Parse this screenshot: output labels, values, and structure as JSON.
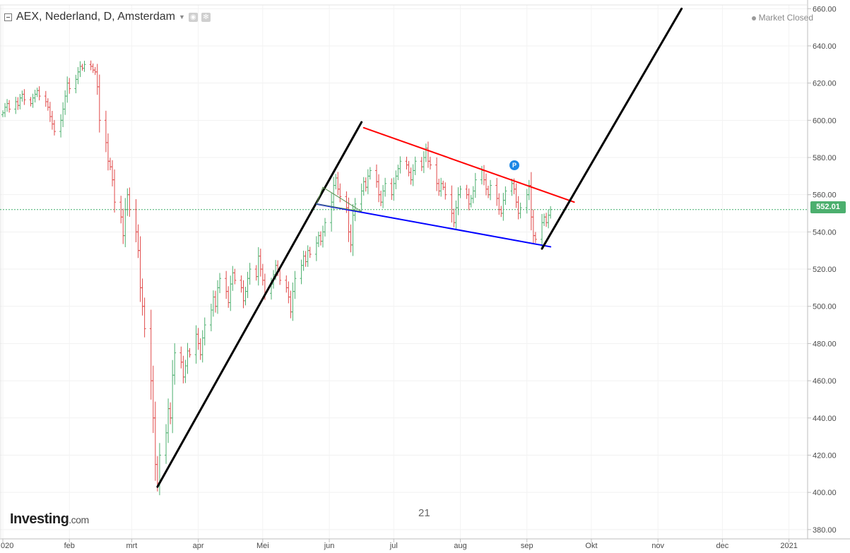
{
  "legend": {
    "title": "AEX, Nederland, D, Amsterdam"
  },
  "status": {
    "label": "Market Closed"
  },
  "logo": {
    "brand": "Investing",
    "suffix": ".com"
  },
  "watermark": "21",
  "price_marker": "P",
  "colors": {
    "up": "#4caf6e",
    "down": "#e04848",
    "last_price_line": "#3fae6a",
    "resistance": "#ff0000",
    "support": "#0000ff",
    "trend": "#000000",
    "triangle": "#5a8f4e"
  },
  "chart_data": {
    "type": "ohlc-bar",
    "y_axis": {
      "min": 375,
      "max": 662,
      "side": "right",
      "ticks": [
        380,
        400,
        420,
        440,
        460,
        480,
        500,
        520,
        540,
        560,
        580,
        600,
        620,
        640,
        660
      ],
      "tick_labels": [
        "380.00",
        "400.00",
        "420.00",
        "440.00",
        "460.00",
        "480.00",
        "500.00",
        "520.00",
        "540.00",
        "560.00",
        "580.00",
        "600.00",
        "620.00",
        "640.00",
        "660.00"
      ]
    },
    "x_axis": {
      "labels": [
        {
          "text": "020",
          "d": 0
        },
        {
          "text": "feb",
          "d": 31
        },
        {
          "text": "mrt",
          "d": 60
        },
        {
          "text": "apr",
          "d": 91
        },
        {
          "text": "Mei",
          "d": 121
        },
        {
          "text": "jun",
          "d": 152
        },
        {
          "text": "jul",
          "d": 182
        },
        {
          "text": "aug",
          "d": 213
        },
        {
          "text": "sep",
          "d": 244
        },
        {
          "text": "Okt",
          "d": 274
        },
        {
          "text": "nov",
          "d": 305
        },
        {
          "text": "dec",
          "d": 335
        },
        {
          "text": "2021",
          "d": 366
        }
      ]
    },
    "last_price": {
      "value": 552.01,
      "label": "552.01"
    },
    "closes": [
      {
        "d": 0,
        "c": 604
      },
      {
        "d": 1,
        "c": 607
      },
      {
        "d": 2,
        "c": 609
      },
      {
        "d": 3,
        "c": 606
      },
      {
        "d": 6,
        "c": 610
      },
      {
        "d": 7,
        "c": 608
      },
      {
        "d": 8,
        "c": 612
      },
      {
        "d": 9,
        "c": 614
      },
      {
        "d": 10,
        "c": 611
      },
      {
        "d": 13,
        "c": 609
      },
      {
        "d": 14,
        "c": 612
      },
      {
        "d": 15,
        "c": 614
      },
      {
        "d": 16,
        "c": 616
      },
      {
        "d": 17,
        "c": 613
      },
      {
        "d": 20,
        "c": 610
      },
      {
        "d": 21,
        "c": 607
      },
      {
        "d": 22,
        "c": 602
      },
      {
        "d": 23,
        "c": 598
      },
      {
        "d": 24,
        "c": 594
      },
      {
        "d": 27,
        "c": 600
      },
      {
        "d": 28,
        "c": 606
      },
      {
        "d": 29,
        "c": 613
      },
      {
        "d": 30,
        "c": 620
      },
      {
        "d": 31,
        "c": 617
      },
      {
        "d": 34,
        "c": 622
      },
      {
        "d": 35,
        "c": 626
      },
      {
        "d": 36,
        "c": 629
      },
      {
        "d": 37,
        "c": 628
      },
      {
        "d": 38,
        "c": 630
      },
      {
        "d": 41,
        "c": 629
      },
      {
        "d": 42,
        "c": 627
      },
      {
        "d": 43,
        "c": 626
      },
      {
        "d": 44,
        "c": 618
      },
      {
        "d": 45,
        "c": 600
      },
      {
        "d": 48,
        "c": 588
      },
      {
        "d": 49,
        "c": 578
      },
      {
        "d": 50,
        "c": 575
      },
      {
        "d": 51,
        "c": 568
      },
      {
        "d": 52,
        "c": 556
      },
      {
        "d": 55,
        "c": 548
      },
      {
        "d": 56,
        "c": 538
      },
      {
        "d": 57,
        "c": 552
      },
      {
        "d": 58,
        "c": 560
      },
      {
        "d": 59,
        "c": 552
      },
      {
        "d": 62,
        "c": 540
      },
      {
        "d": 63,
        "c": 530
      },
      {
        "d": 64,
        "c": 510
      },
      {
        "d": 65,
        "c": 500
      },
      {
        "d": 66,
        "c": 488
      },
      {
        "d": 69,
        "c": 460
      },
      {
        "d": 70,
        "c": 440
      },
      {
        "d": 71,
        "c": 415
      },
      {
        "d": 72,
        "c": 405
      },
      {
        "d": 73,
        "c": 420
      },
      {
        "d": 76,
        "c": 432
      },
      {
        "d": 77,
        "c": 445
      },
      {
        "d": 78,
        "c": 440
      },
      {
        "d": 79,
        "c": 463
      },
      {
        "d": 80,
        "c": 475
      },
      {
        "d": 83,
        "c": 470
      },
      {
        "d": 84,
        "c": 462
      },
      {
        "d": 85,
        "c": 468
      },
      {
        "d": 86,
        "c": 476
      },
      {
        "d": 87,
        "c": 474
      },
      {
        "d": 90,
        "c": 485
      },
      {
        "d": 91,
        "c": 480
      },
      {
        "d": 92,
        "c": 474
      },
      {
        "d": 93,
        "c": 483
      },
      {
        "d": 94,
        "c": 490
      },
      {
        "d": 97,
        "c": 498
      },
      {
        "d": 98,
        "c": 505
      },
      {
        "d": 99,
        "c": 500
      },
      {
        "d": 100,
        "c": 510
      },
      {
        "d": 101,
        "c": 515
      },
      {
        "d": 104,
        "c": 508
      },
      {
        "d": 105,
        "c": 502
      },
      {
        "d": 106,
        "c": 512
      },
      {
        "d": 107,
        "c": 518
      },
      {
        "d": 108,
        "c": 514
      },
      {
        "d": 111,
        "c": 510
      },
      {
        "d": 112,
        "c": 503
      },
      {
        "d": 113,
        "c": 508
      },
      {
        "d": 114,
        "c": 515
      },
      {
        "d": 115,
        "c": 520
      },
      {
        "d": 118,
        "c": 516
      },
      {
        "d": 119,
        "c": 527
      },
      {
        "d": 120,
        "c": 520
      },
      {
        "d": 121,
        "c": 514
      },
      {
        "d": 122,
        "c": 507
      },
      {
        "d": 125,
        "c": 512
      },
      {
        "d": 126,
        "c": 517
      },
      {
        "d": 127,
        "c": 522
      },
      {
        "d": 128,
        "c": 519
      },
      {
        "d": 129,
        "c": 514
      },
      {
        "d": 132,
        "c": 510
      },
      {
        "d": 133,
        "c": 505
      },
      {
        "d": 134,
        "c": 497
      },
      {
        "d": 135,
        "c": 508
      },
      {
        "d": 136,
        "c": 515
      },
      {
        "d": 139,
        "c": 522
      },
      {
        "d": 140,
        "c": 527
      },
      {
        "d": 141,
        "c": 524
      },
      {
        "d": 142,
        "c": 530
      },
      {
        "d": 143,
        "c": 528
      },
      {
        "d": 146,
        "c": 534
      },
      {
        "d": 147,
        "c": 538
      },
      {
        "d": 148,
        "c": 535
      },
      {
        "d": 149,
        "c": 540
      },
      {
        "d": 150,
        "c": 545
      },
      {
        "d": 153,
        "c": 556
      },
      {
        "d": 154,
        "c": 565
      },
      {
        "d": 155,
        "c": 569
      },
      {
        "d": 156,
        "c": 563
      },
      {
        "d": 157,
        "c": 559
      },
      {
        "d": 160,
        "c": 553
      },
      {
        "d": 161,
        "c": 540
      },
      {
        "d": 162,
        "c": 533
      },
      {
        "d": 163,
        "c": 549
      },
      {
        "d": 164,
        "c": 555
      },
      {
        "d": 167,
        "c": 562
      },
      {
        "d": 168,
        "c": 567
      },
      {
        "d": 169,
        "c": 564
      },
      {
        "d": 170,
        "c": 570
      },
      {
        "d": 171,
        "c": 573
      },
      {
        "d": 174,
        "c": 567
      },
      {
        "d": 175,
        "c": 560
      },
      {
        "d": 176,
        "c": 556
      },
      {
        "d": 177,
        "c": 562
      },
      {
        "d": 178,
        "c": 566
      },
      {
        "d": 181,
        "c": 560
      },
      {
        "d": 182,
        "c": 566
      },
      {
        "d": 183,
        "c": 570
      },
      {
        "d": 184,
        "c": 574
      },
      {
        "d": 185,
        "c": 578
      },
      {
        "d": 188,
        "c": 576
      },
      {
        "d": 189,
        "c": 572
      },
      {
        "d": 190,
        "c": 568
      },
      {
        "d": 191,
        "c": 573
      },
      {
        "d": 192,
        "c": 578
      },
      {
        "d": 195,
        "c": 575
      },
      {
        "d": 196,
        "c": 580
      },
      {
        "d": 197,
        "c": 585
      },
      {
        "d": 198,
        "c": 578
      },
      {
        "d": 199,
        "c": 576
      },
      {
        "d": 202,
        "c": 566
      },
      {
        "d": 203,
        "c": 562
      },
      {
        "d": 204,
        "c": 566
      },
      {
        "d": 205,
        "c": 564
      },
      {
        "d": 206,
        "c": 560
      },
      {
        "d": 209,
        "c": 550
      },
      {
        "d": 210,
        "c": 545
      },
      {
        "d": 211,
        "c": 553
      },
      {
        "d": 212,
        "c": 560
      },
      {
        "d": 213,
        "c": 563
      },
      {
        "d": 216,
        "c": 560
      },
      {
        "d": 217,
        "c": 555
      },
      {
        "d": 218,
        "c": 558
      },
      {
        "d": 219,
        "c": 562
      },
      {
        "d": 220,
        "c": 568
      },
      {
        "d": 223,
        "c": 573
      },
      {
        "d": 224,
        "c": 568
      },
      {
        "d": 225,
        "c": 563
      },
      {
        "d": 226,
        "c": 560
      },
      {
        "d": 227,
        "c": 565
      },
      {
        "d": 230,
        "c": 558
      },
      {
        "d": 231,
        "c": 552
      },
      {
        "d": 232,
        "c": 550
      },
      {
        "d": 233,
        "c": 557
      },
      {
        "d": 234,
        "c": 562
      },
      {
        "d": 237,
        "c": 566
      },
      {
        "d": 238,
        "c": 563
      },
      {
        "d": 239,
        "c": 556
      },
      {
        "d": 240,
        "c": 550
      },
      {
        "d": 241,
        "c": 553
      },
      {
        "d": 244,
        "c": 560
      },
      {
        "d": 245,
        "c": 565
      },
      {
        "d": 246,
        "c": 548
      },
      {
        "d": 247,
        "c": 538
      },
      {
        "d": 248,
        "c": 536
      },
      {
        "d": 251,
        "c": 545
      },
      {
        "d": 252,
        "c": 548
      },
      {
        "d": 253,
        "c": 545
      },
      {
        "d": 254,
        "c": 549
      },
      {
        "d": 255,
        "c": 552
      }
    ],
    "annotations": [
      {
        "kind": "trendline",
        "color": "black",
        "from": {
          "d": 72,
          "v": 403
        },
        "to": {
          "d": 167,
          "v": 599
        }
      },
      {
        "kind": "trendline",
        "color": "red",
        "from": {
          "d": 168,
          "v": 596
        },
        "to": {
          "d": 266,
          "v": 556
        }
      },
      {
        "kind": "trendline",
        "color": "blue",
        "from": {
          "d": 146,
          "v": 555
        },
        "to": {
          "d": 255,
          "v": 532
        }
      },
      {
        "kind": "trendline",
        "color": "black",
        "from": {
          "d": 251,
          "v": 531
        },
        "to": {
          "d": 316,
          "v": 660
        }
      },
      {
        "kind": "triangle",
        "color": "green",
        "points": [
          {
            "d": 146,
            "v": 555
          },
          {
            "d": 149,
            "v": 564
          },
          {
            "d": 167,
            "v": 551
          }
        ]
      }
    ]
  }
}
